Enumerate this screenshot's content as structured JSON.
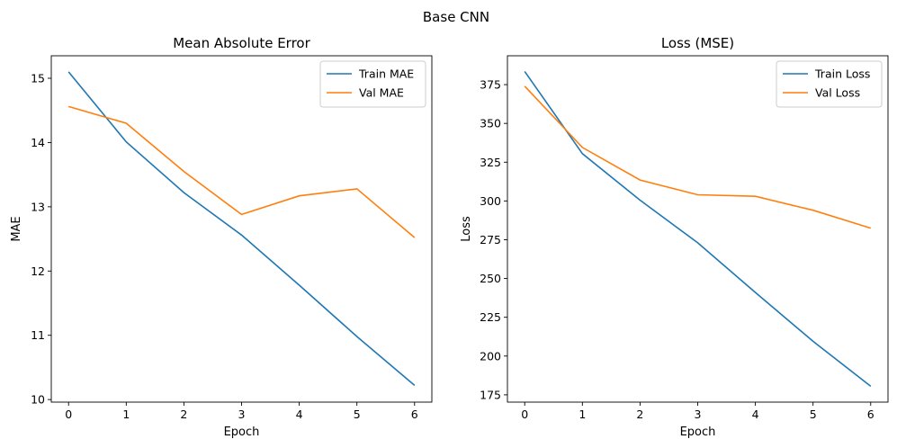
{
  "figure": {
    "suptitle": "Base CNN"
  },
  "colors": {
    "train": "#1f77b4",
    "val": "#ff7f0e",
    "axes": "#000000",
    "legend_border": "#cccccc"
  },
  "chart_data": [
    {
      "type": "line",
      "title": "Mean Absolute Error",
      "xlabel": "Epoch",
      "ylabel": "MAE",
      "x": [
        0,
        1,
        2,
        3,
        4,
        5,
        6
      ],
      "xticks": [
        "0",
        "1",
        "2",
        "3",
        "4",
        "5",
        "6"
      ],
      "xlim": [
        -0.3,
        6.3
      ],
      "yticks": [
        "10",
        "11",
        "12",
        "13",
        "14",
        "15"
      ],
      "ylim": [
        9.96,
        15.35
      ],
      "grid": false,
      "legend_position": "top-right",
      "series": [
        {
          "name": "Train MAE",
          "color": "#1f77b4",
          "values": [
            15.1,
            14.01,
            13.22,
            12.56,
            11.78,
            10.98,
            10.22
          ]
        },
        {
          "name": "Val MAE",
          "color": "#ff7f0e",
          "values": [
            14.56,
            14.3,
            13.55,
            12.88,
            13.17,
            13.28,
            12.52
          ]
        }
      ]
    },
    {
      "type": "line",
      "title": "Loss (MSE)",
      "xlabel": "Epoch",
      "ylabel": "Loss",
      "x": [
        0,
        1,
        2,
        3,
        4,
        5,
        6
      ],
      "xticks": [
        "0",
        "1",
        "2",
        "3",
        "4",
        "5",
        "6"
      ],
      "xlim": [
        -0.3,
        6.3
      ],
      "yticks": [
        "175",
        "200",
        "225",
        "250",
        "275",
        "300",
        "325",
        "350",
        "375"
      ],
      "ylim": [
        170.3,
        393.6
      ],
      "grid": false,
      "legend_position": "top-right",
      "series": [
        {
          "name": "Train Loss",
          "color": "#1f77b4",
          "values": [
            383.5,
            330.5,
            300.5,
            273.0,
            241.0,
            209.5,
            180.5
          ]
        },
        {
          "name": "Val Loss",
          "color": "#ff7f0e",
          "values": [
            374.0,
            334.5,
            313.5,
            304.0,
            303.0,
            294.0,
            282.5
          ]
        }
      ]
    }
  ]
}
